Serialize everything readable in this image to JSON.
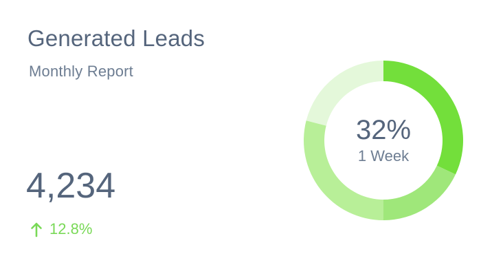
{
  "card": {
    "title": "Generated Leads",
    "subtitle": "Monthly Report",
    "value": "4,234",
    "change": {
      "icon": "arrow-up-icon",
      "text": "12.8%",
      "color": "#79d957"
    }
  },
  "donut": {
    "center_value": "32%",
    "center_label": "1 Week",
    "colors": {
      "segment_1": "#73df3b",
      "segment_2": "#9fe77a",
      "segment_3": "#b8ef98",
      "segment_4": "#e4f8da"
    },
    "segments": [
      {
        "value": 32,
        "color_key": "segment_1"
      },
      {
        "value": 18,
        "color_key": "segment_2"
      },
      {
        "value": 29,
        "color_key": "segment_3"
      },
      {
        "value": 21,
        "color_key": "segment_4"
      }
    ]
  }
}
